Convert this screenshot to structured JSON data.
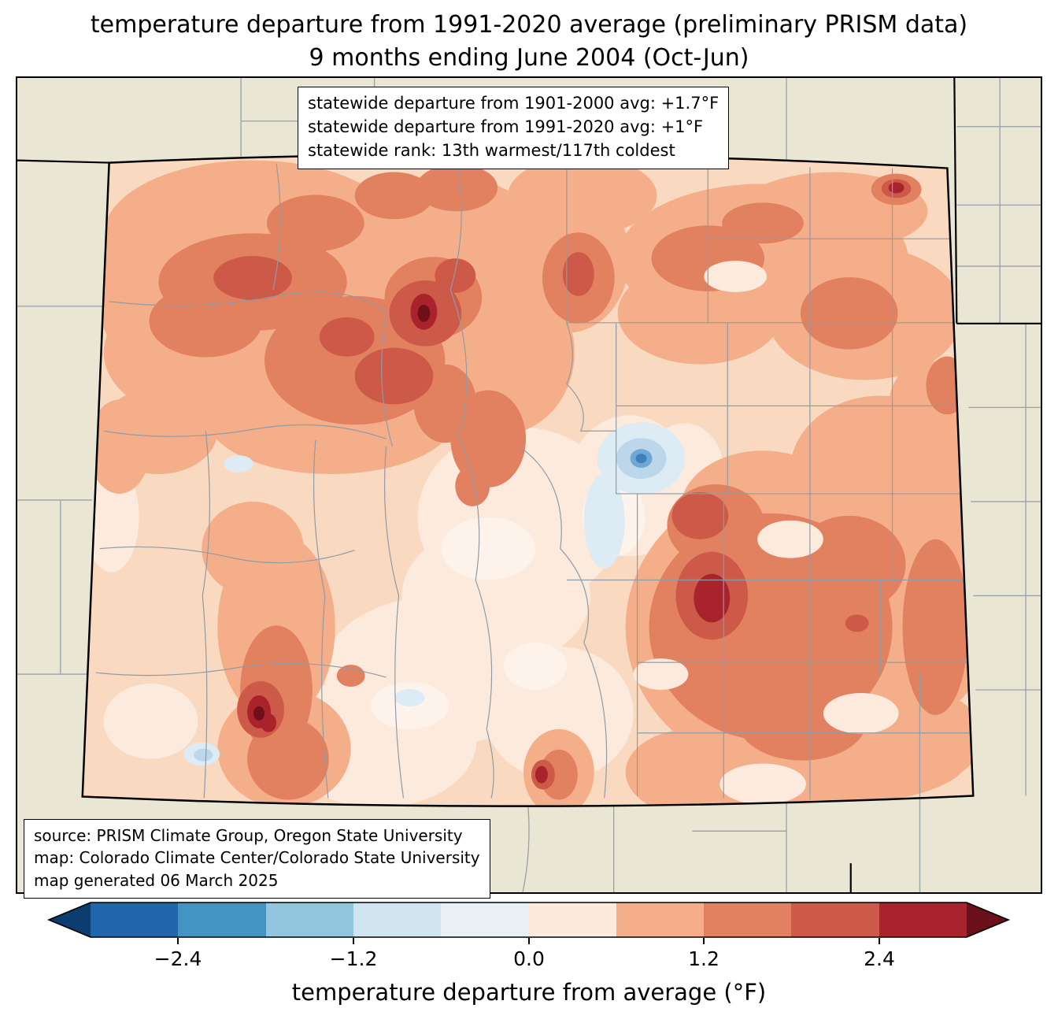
{
  "title": {
    "line1": "temperature departure from 1991-2020 average (preliminary PRISM data)",
    "line2": "9 months ending June 2004 (Oct-Jun)"
  },
  "stats_box": {
    "line1": "statewide departure from 1901-2000 avg: +1.7°F",
    "line2": "statewide departure from 1991-2020 avg: +1°F",
    "line3": "statewide rank: 13th warmest/117th coldest"
  },
  "source_box": {
    "line1": "source: PRISM Climate Group, Oregon State University",
    "line2": "map: Colorado Climate Center/Colorado State University",
    "line3": "map generated 06 March 2025"
  },
  "colorbar": {
    "label": "temperature departure from average (°F)",
    "ticks": [
      "−2.4",
      "−1.2",
      "0.0",
      "1.2",
      "2.4"
    ],
    "tick_values": [
      -2.4,
      -1.2,
      0.0,
      1.2,
      2.4
    ],
    "range": [
      -3.0,
      3.0
    ],
    "bands": [
      "#2166ac",
      "#4393c3",
      "#92c5de",
      "#d1e5f0",
      "#e9eff3",
      "#fbe9dc",
      "#f4af8a",
      "#e2815f",
      "#cd5a48",
      "#a8232c"
    ],
    "arrow_left": "#0b3d70",
    "arrow_right": "#6b0f1a"
  }
}
